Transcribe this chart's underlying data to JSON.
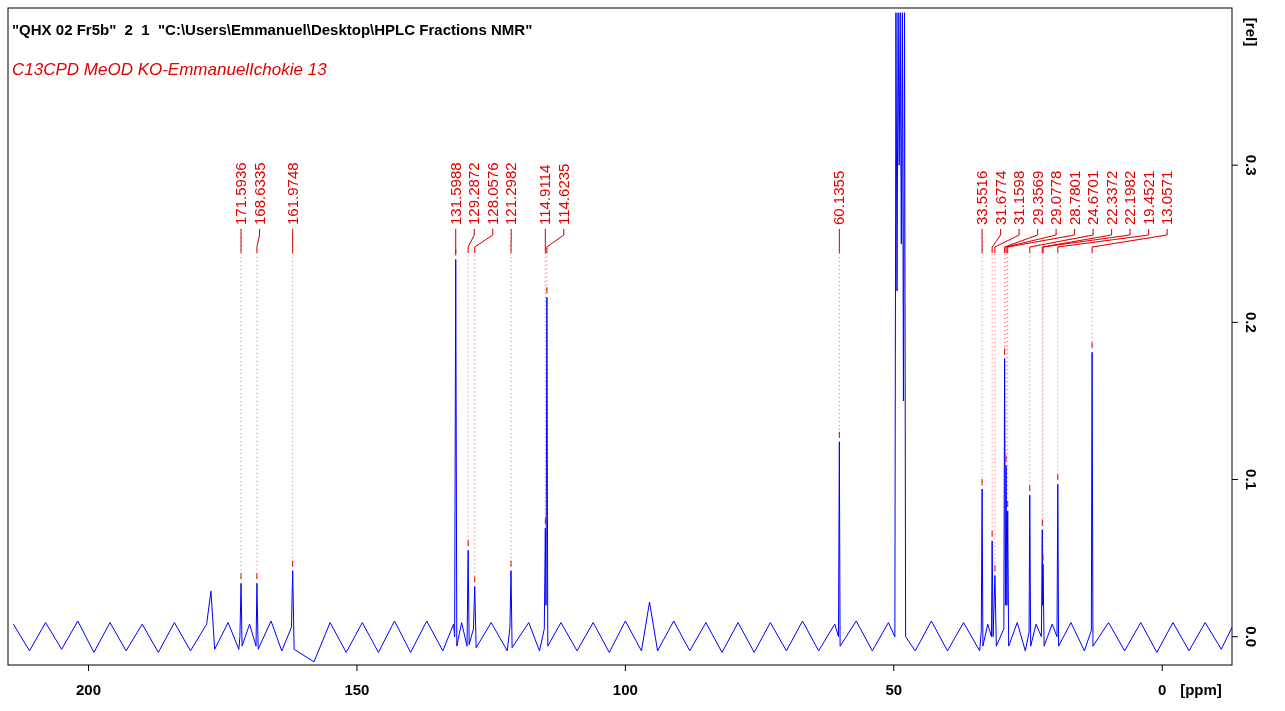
{
  "chart_data": {
    "type": "line",
    "title": "\"QHX 02 Fr5b\"  2  1  \"C:\\Users\\Emmanuel\\Desktop\\HPLC Fractions NMR\"",
    "subtitle": "C13CPD MeOD KO-EmmanuelIchokie 13",
    "xlabel": "[ppm]",
    "ylabel": "[rel]",
    "xlim": [
      215,
      -13
    ],
    "ylim": [
      -0.018,
      0.4
    ],
    "xticks": [
      200,
      150,
      100,
      50,
      0
    ],
    "yticks": [
      {
        "value": 0,
        "label": "0.0"
      },
      {
        "value": 0.1,
        "label": "0.1"
      },
      {
        "value": 0.2,
        "label": "0.2"
      },
      {
        "value": 0.3,
        "label": "0.3"
      }
    ],
    "grid": false,
    "marker": "none",
    "line_style": "solid",
    "series": [
      {
        "color": "#0000ff",
        "x": [
          214,
          211,
          208,
          205,
          202,
          199,
          196,
          193,
          190,
          187,
          184,
          181,
          178,
          177.2,
          176.5,
          174,
          172,
          171.8,
          171.59,
          171.4,
          170,
          168.8,
          168.63,
          168.4,
          166,
          164,
          162.2,
          161.97,
          161.7,
          158,
          155,
          152,
          149,
          146,
          143,
          140,
          137,
          134,
          132,
          131.8,
          131.6,
          131.4,
          130.5,
          129.5,
          129.29,
          129.1,
          128.3,
          128.06,
          127.8,
          125,
          122,
          121.5,
          121.3,
          121.1,
          118,
          116,
          115.1,
          114.91,
          114.78,
          114.62,
          114.45,
          112,
          109,
          106,
          103,
          100,
          97,
          95.5,
          94,
          91,
          88,
          85,
          82,
          79,
          76,
          73,
          70,
          67,
          64,
          61,
          60.3,
          60.14,
          60,
          57,
          54,
          51,
          49.8,
          49.6,
          49.4,
          49.2,
          49,
          48.8,
          48.6,
          48.4,
          48.2,
          48,
          47.8,
          46,
          43,
          40,
          37,
          34,
          33.7,
          33.55,
          33.4,
          32.5,
          31.8,
          31.68,
          31.5,
          31.16,
          30.9,
          29.5,
          29.36,
          29.2,
          29.08,
          28.93,
          28.78,
          28.6,
          27,
          25.5,
          24.8,
          24.67,
          24.5,
          23.5,
          22.5,
          22.34,
          22.27,
          22.2,
          22,
          20.5,
          19.6,
          19.45,
          19.3,
          17,
          14.5,
          13.2,
          13.06,
          12.9,
          10,
          7,
          4,
          1,
          -2,
          -5,
          -8,
          -11,
          -13
        ],
        "values": [
          0.008,
          -0.009,
          0.009,
          -0.008,
          0.01,
          -0.01,
          0.009,
          -0.009,
          0.008,
          -0.01,
          0.009,
          -0.009,
          0.008,
          0.029,
          -0.008,
          0.009,
          -0.008,
          0,
          0.034,
          -0.006,
          0.008,
          -0.006,
          0.034,
          -0.008,
          0.01,
          -0.009,
          0.006,
          0.042,
          -0.008,
          -0.016,
          0.009,
          -0.01,
          0.009,
          -0.01,
          0.01,
          -0.01,
          0.01,
          -0.009,
          0.008,
          0,
          0.24,
          -0.006,
          0.009,
          -0.006,
          0.055,
          -0.005,
          0.005,
          0.032,
          -0.007,
          0.009,
          -0.009,
          0.006,
          0.042,
          -0.007,
          0.009,
          -0.009,
          0.005,
          0.069,
          0.02,
          0.216,
          -0.006,
          0.009,
          -0.009,
          0.009,
          -0.01,
          0.01,
          -0.009,
          0.022,
          -0.009,
          0.01,
          -0.009,
          0.009,
          -0.01,
          0.009,
          -0.01,
          0.009,
          -0.009,
          0.01,
          -0.009,
          0.008,
          0,
          0.124,
          -0.006,
          0.01,
          -0.009,
          0.009,
          0,
          0.397,
          0.22,
          0.397,
          0.3,
          0.397,
          0.25,
          0.397,
          0.15,
          0.397,
          0,
          -0.009,
          0.01,
          -0.009,
          0.009,
          -0.009,
          0.004,
          0.094,
          -0.006,
          0.008,
          0,
          0.061,
          0,
          0.039,
          -0.006,
          0.005,
          0.177,
          0.02,
          0.109,
          0.02,
          0.08,
          -0.006,
          0.009,
          -0.009,
          0.003,
          0.09,
          -0.006,
          0.008,
          0,
          0.068,
          0.02,
          0.046,
          -0.006,
          0.008,
          0,
          0.097,
          -0.006,
          0.009,
          -0.009,
          0.004,
          0.181,
          -0.006,
          0.009,
          -0.009,
          0.009,
          -0.01,
          0.009,
          -0.009,
          0.009,
          -0.008,
          0.006
        ]
      }
    ],
    "annotations": [
      {
        "text": "171.5936",
        "x": 171.59,
        "y": 0.034
      },
      {
        "text": "168.6335",
        "x": 168.63,
        "y": 0.034
      },
      {
        "text": "161.9748",
        "x": 161.97,
        "y": 0.042
      },
      {
        "text": "131.5988",
        "x": 131.6,
        "y": 0.24
      },
      {
        "text": "129.2872",
        "x": 129.29,
        "y": 0.055
      },
      {
        "text": "128.0576",
        "x": 128.06,
        "y": 0.032
      },
      {
        "text": "121.2982",
        "x": 121.3,
        "y": 0.042
      },
      {
        "text": "114.9114",
        "x": 114.91,
        "y": 0.069
      },
      {
        "text": "114.6235",
        "x": 114.62,
        "y": 0.216
      },
      {
        "text": "60.1355",
        "x": 60.14,
        "y": 0.124
      },
      {
        "text": "33.5516",
        "x": 33.55,
        "y": 0.094
      },
      {
        "text": "31.6774",
        "x": 31.68,
        "y": 0.061
      },
      {
        "text": "31.1598",
        "x": 31.16,
        "y": 0.039
      },
      {
        "text": "29.3569",
        "x": 29.36,
        "y": 0.177
      },
      {
        "text": "29.0778",
        "x": 29.08,
        "y": 0.109
      },
      {
        "text": "28.7801",
        "x": 28.78,
        "y": 0.08
      },
      {
        "text": "24.6701",
        "x": 24.67,
        "y": 0.09
      },
      {
        "text": "22.3372",
        "x": 22.34,
        "y": 0.068
      },
      {
        "text": "22.1982",
        "x": 22.2,
        "y": 0.046
      },
      {
        "text": "19.4521",
        "x": 19.45,
        "y": 0.097
      },
      {
        "text": "13.0571",
        "x": 13.06,
        "y": 0.181
      }
    ]
  }
}
